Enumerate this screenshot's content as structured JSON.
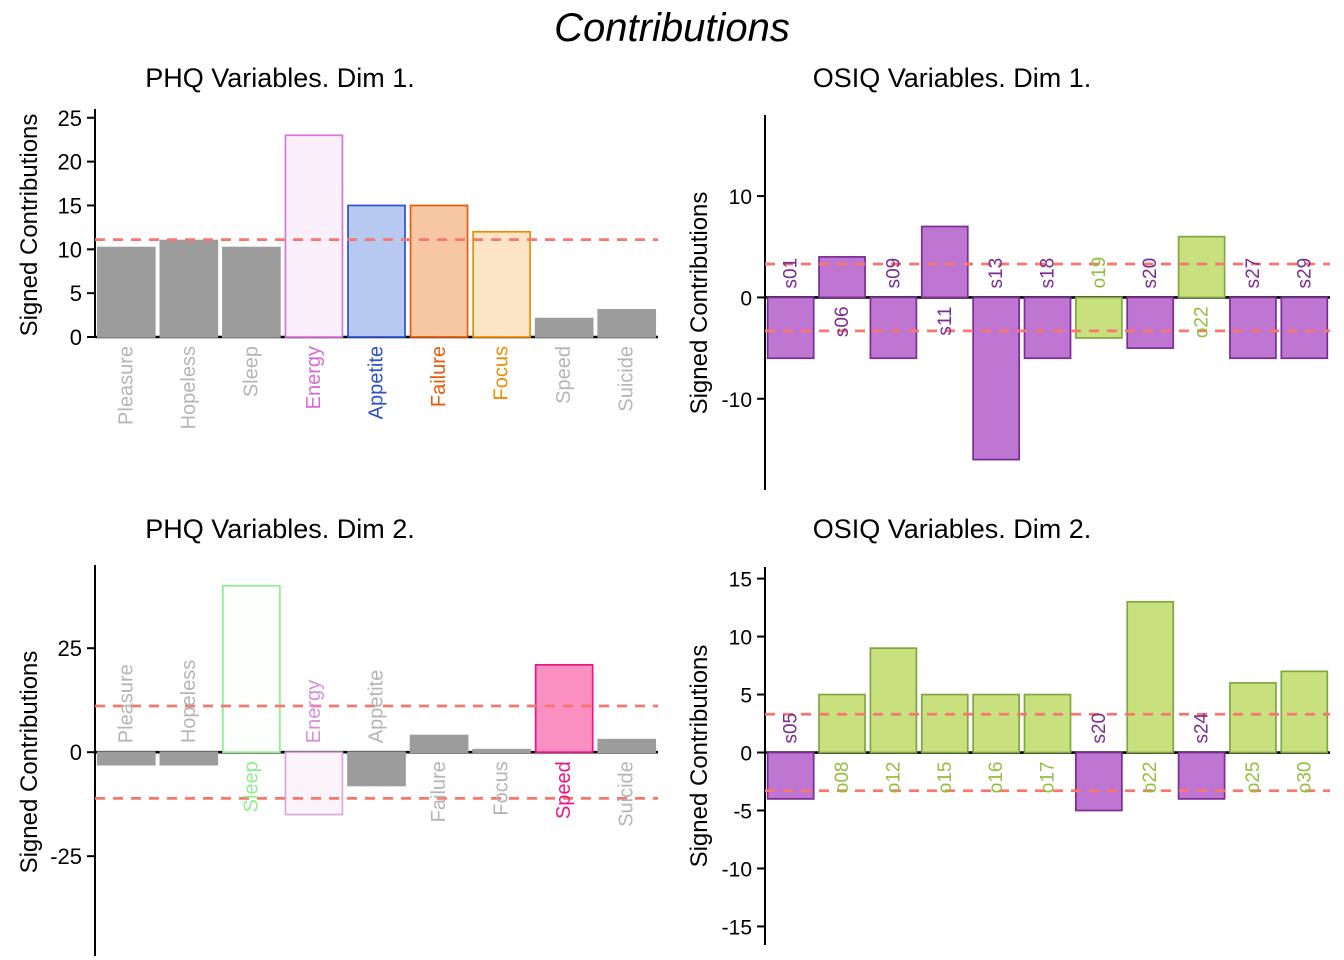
{
  "page_title": "Contributions",
  "threshold_color": "#F8766D",
  "chart_data": [
    {
      "type": "bar",
      "title": "PHQ Variables. Dim 1.",
      "ylabel": "Signed Contributions",
      "categories": [
        "Pleasure",
        "Hopeless",
        "Sleep",
        "Energy",
        "Appetite",
        "Failure",
        "Focus",
        "Speed",
        "Suicide"
      ],
      "values": [
        10.2,
        11,
        10.2,
        23,
        15,
        15,
        12,
        2.1,
        3.1
      ],
      "bar_fills": [
        "#9C9C9C",
        "#9C9C9C",
        "#9C9C9C",
        "#FBEFFB",
        "#B7C9F0",
        "#F7C6A3",
        "#FCE5C7",
        "#9C9C9C",
        "#9C9C9C"
      ],
      "bar_strokes": [
        "#9C9C9C",
        "#9C9C9C",
        "#9C9C9C",
        "#D876D8",
        "#2B50CD",
        "#E8590C",
        "#F08C00",
        "#9C9C9C",
        "#9C9C9C"
      ],
      "label_colors": [
        "#B5B5B5",
        "#B5B5B5",
        "#B5B5B5",
        "#D66BD6",
        "#2B50CD",
        "#E8590C",
        "#F08C00",
        "#B5B5B5",
        "#B5B5B5"
      ],
      "yticks": [
        0,
        5,
        10,
        15,
        20,
        25
      ],
      "ylim": [
        0,
        26
      ],
      "thresholds": [
        11.1
      ],
      "threshold_style": "dashed",
      "grid": false,
      "legend_position": "none"
    },
    {
      "type": "bar",
      "title": "OSIQ Variables. Dim 1.",
      "ylabel": "Signed Contributions",
      "categories": [
        "s01",
        "s06",
        "s09",
        "s11",
        "s13",
        "s18",
        "o19",
        "s20",
        "o22",
        "s27",
        "s29"
      ],
      "values": [
        -6,
        4,
        -6,
        7,
        -16,
        -6,
        -4,
        -5,
        6,
        -6,
        -6
      ],
      "bar_fills": [
        "#BF76D3",
        "#BF76D3",
        "#BF76D3",
        "#BF76D3",
        "#BF76D3",
        "#BF76D3",
        "#C9E07F",
        "#BF76D3",
        "#C9E07F",
        "#BF76D3",
        "#BF76D3"
      ],
      "bar_strokes": [
        "#7A2B94",
        "#7A2B94",
        "#7A2B94",
        "#7A2B94",
        "#7A2B94",
        "#7A2B94",
        "#7FA640",
        "#7A2B94",
        "#7FA640",
        "#7A2B94",
        "#7A2B94"
      ],
      "label_colors": [
        "#7A2B94",
        "#7A2B94",
        "#7A2B94",
        "#7A2B94",
        "#7A2B94",
        "#7A2B94",
        "#94BE3D",
        "#7A2B94",
        "#94BE3D",
        "#7A2B94",
        "#7A2B94"
      ],
      "yticks": [
        -10,
        0,
        10
      ],
      "ylim": [
        -19,
        18
      ],
      "thresholds": [
        3.3,
        -3.3
      ],
      "threshold_style": "dashed",
      "grid": false,
      "legend_position": "none"
    },
    {
      "type": "bar",
      "title": "PHQ Variables. Dim 2.",
      "ylabel": "Signed Contributions",
      "categories": [
        "Pleasure",
        "Hopeless",
        "Sleep",
        "Energy",
        "Appetite",
        "Failure",
        "Focus",
        "Speed",
        "Suicide"
      ],
      "values": [
        -3,
        -3,
        40,
        -15,
        -8,
        4,
        0.6,
        21,
        3
      ],
      "bar_fills": [
        "#9C9C9C",
        "#9C9C9C",
        "#FCFFFC",
        "#FAF3FA",
        "#9C9C9C",
        "#9C9C9C",
        "#9C9C9C",
        "#FA8FC2",
        "#9C9C9C"
      ],
      "bar_strokes": [
        "#9C9C9C",
        "#9C9C9C",
        "#90EE90",
        "#DCA8DC",
        "#9C9C9C",
        "#9C9C9C",
        "#9C9C9C",
        "#EE1289",
        "#9C9C9C"
      ],
      "label_colors": [
        "#B5B5B5",
        "#B5B5B5",
        "#90EE90",
        "#D98FD9",
        "#B5B5B5",
        "#B5B5B5",
        "#B5B5B5",
        "#EE1289",
        "#B5B5B5"
      ],
      "yticks": [
        -25,
        0,
        25
      ],
      "ylim": [
        -49,
        45
      ],
      "thresholds": [
        11.1,
        -11.1
      ],
      "threshold_style": "dashed",
      "grid": false,
      "legend_position": "none"
    },
    {
      "type": "bar",
      "title": "OSIQ Variables. Dim 2.",
      "ylabel": "Signed Contributions",
      "categories": [
        "s05",
        "o08",
        "o12",
        "o15",
        "o16",
        "o17",
        "s20",
        "o22",
        "s24",
        "o25",
        "o30"
      ],
      "values": [
        -4,
        5,
        9,
        5,
        5,
        5,
        -5,
        13,
        -4,
        6,
        7
      ],
      "bar_fills": [
        "#BF76D3",
        "#C9E07F",
        "#C9E07F",
        "#C9E07F",
        "#C9E07F",
        "#C9E07F",
        "#BF76D3",
        "#C9E07F",
        "#BF76D3",
        "#C9E07F",
        "#C9E07F"
      ],
      "bar_strokes": [
        "#7A2B94",
        "#7FA640",
        "#7FA640",
        "#7FA640",
        "#7FA640",
        "#7FA640",
        "#7A2B94",
        "#7FA640",
        "#7A2B94",
        "#7FA640",
        "#7FA640"
      ],
      "label_colors": [
        "#7A2B94",
        "#94BE3D",
        "#94BE3D",
        "#94BE3D",
        "#94BE3D",
        "#94BE3D",
        "#7A2B94",
        "#94BE3D",
        "#7A2B94",
        "#94BE3D",
        "#94BE3D"
      ],
      "yticks": [
        -15,
        -10,
        -5,
        0,
        5,
        10,
        15
      ],
      "ylim": [
        -16.6,
        16
      ],
      "thresholds": [
        3.3,
        -3.3
      ],
      "threshold_style": "dashed",
      "grid": false,
      "legend_position": "none"
    }
  ]
}
